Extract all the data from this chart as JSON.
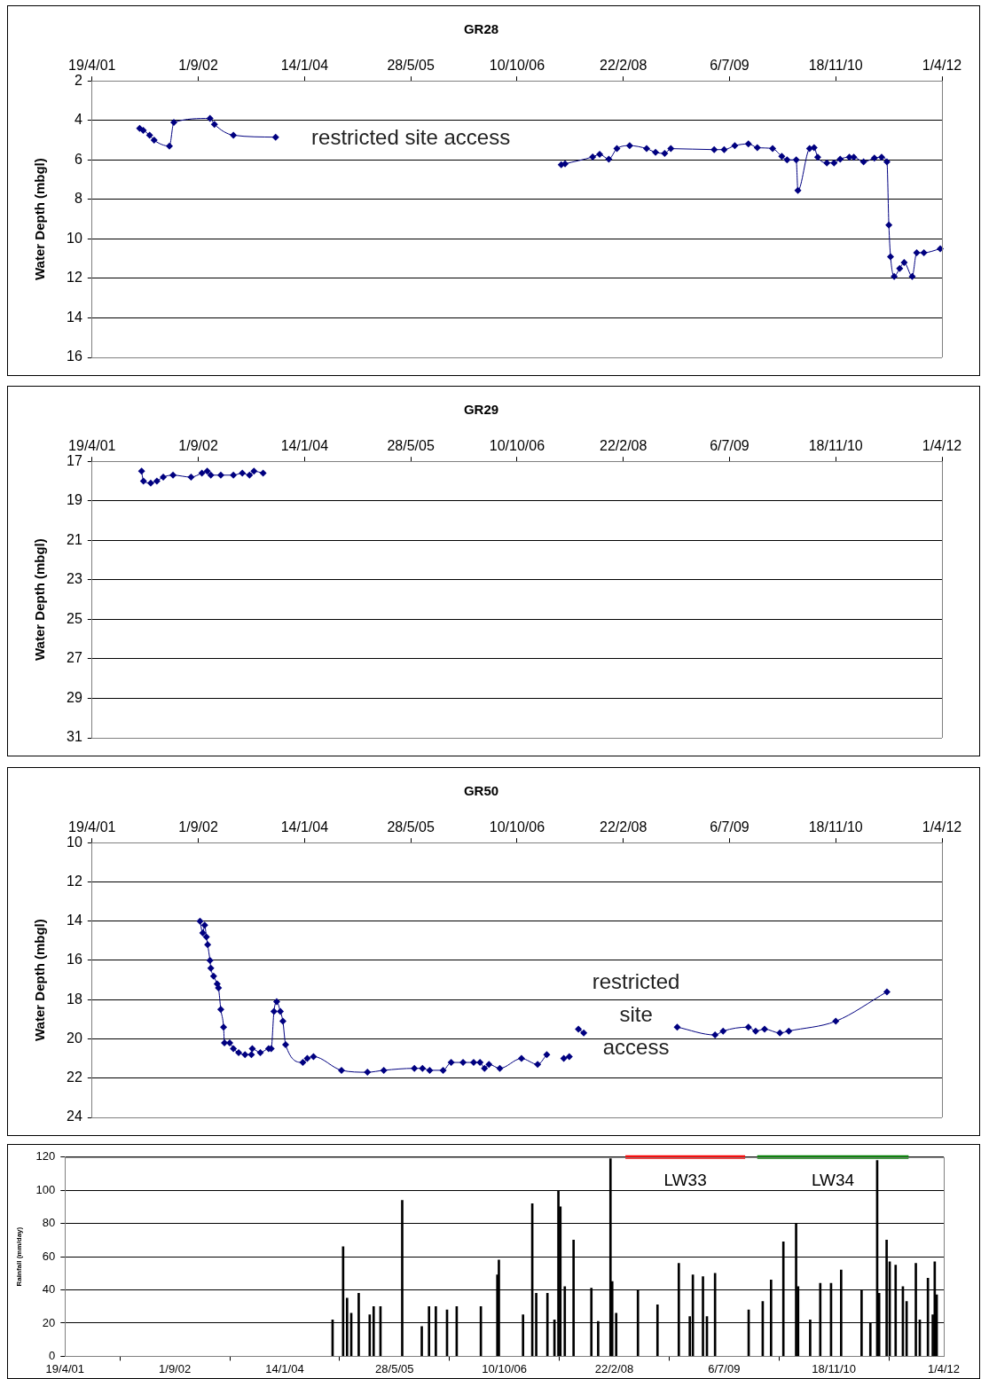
{
  "chart_data": [
    {
      "type": "line",
      "title": "GR28",
      "ylabel": "Water Depth (mbgl)",
      "color": "#000080",
      "marker": "diamond",
      "line_style": "solid",
      "grid": "y",
      "xlim": [
        "2001-04-19",
        "2012-04-01"
      ],
      "xticks": [
        {
          "value": "2001-04-19",
          "label": "19/4/01"
        },
        {
          "value": "2002-09-01",
          "label": "1/9/02"
        },
        {
          "value": "2004-01-14",
          "label": "14/1/04"
        },
        {
          "value": "2005-05-28",
          "label": "28/5/05"
        },
        {
          "value": "2006-10-10",
          "label": "10/10/06"
        },
        {
          "value": "2008-02-22",
          "label": "22/2/08"
        },
        {
          "value": "2009-07-06",
          "label": "6/7/09"
        },
        {
          "value": "2010-11-18",
          "label": "18/11/10"
        },
        {
          "value": "2012-04-01",
          "label": "1/4/12"
        }
      ],
      "ylim": [
        16,
        2
      ],
      "yticks": [
        2,
        4,
        6,
        8,
        10,
        12,
        14,
        16
      ],
      "annotations": [
        "restricted site access"
      ],
      "x": [
        "2001-11-29",
        "2001-12-16",
        "2002-01-15",
        "2002-02-05",
        "2002-04-18",
        "2002-05-09",
        "2002-10-26",
        "2002-11-16",
        "2003-02-13",
        "2003-08-31",
        "2005-06-01",
        "2007-05-06",
        "2007-05-24",
        "2007-10-01",
        "2007-11-03",
        "2007-12-16",
        "2008-01-23",
        "2008-03-23",
        "2008-06-11",
        "2008-07-23",
        "2008-09-04",
        "2008-10-03",
        "2009-04-25",
        "2009-06-11",
        "2009-07-31",
        "2009-10-03",
        "2009-11-14",
        "2010-01-25",
        "2010-03-09",
        "2010-04-03",
        "2010-05-16",
        "2010-05-24",
        "2010-07-18",
        "2010-08-08",
        "2010-08-25",
        "2010-10-07",
        "2010-11-10",
        "2010-12-09",
        "2011-01-21",
        "2011-02-11",
        "2011-03-29",
        "2011-05-19",
        "2011-06-22",
        "2011-07-17",
        "2011-07-26",
        "2011-08-03",
        "2011-08-20",
        "2011-09-15",
        "2011-10-06",
        "2011-11-13",
        "2011-12-04",
        "2012-01-07",
        "2012-03-24"
      ],
      "values": [
        4.4,
        4.5,
        4.75,
        5.0,
        5.3,
        4.1,
        3.9,
        4.2,
        4.75,
        4.85,
        null,
        6.25,
        6.2,
        5.85,
        5.72,
        5.96,
        5.43,
        5.28,
        5.43,
        5.62,
        5.67,
        5.43,
        5.48,
        5.48,
        5.28,
        5.19,
        5.38,
        5.43,
        5.82,
        6.0,
        6.0,
        7.55,
        5.43,
        5.38,
        5.86,
        6.15,
        6.15,
        5.96,
        5.86,
        5.86,
        6.1,
        5.91,
        5.86,
        6.1,
        9.3,
        10.9,
        11.9,
        11.5,
        11.2,
        11.9,
        10.7,
        10.7,
        10.5
      ]
    },
    {
      "type": "line",
      "title": "GR29",
      "ylabel": "Water Depth (mbgl)",
      "color": "#000080",
      "marker": "diamond",
      "line_style": "solid",
      "grid": "y",
      "xlim": [
        "2001-04-19",
        "2012-04-01"
      ],
      "xticks": [
        {
          "value": "2001-04-19",
          "label": "19/4/01"
        },
        {
          "value": "2002-09-01",
          "label": "1/9/02"
        },
        {
          "value": "2004-01-14",
          "label": "14/1/04"
        },
        {
          "value": "2005-05-28",
          "label": "28/5/05"
        },
        {
          "value": "2006-10-10",
          "label": "10/10/06"
        },
        {
          "value": "2008-02-22",
          "label": "22/2/08"
        },
        {
          "value": "2009-07-06",
          "label": "6/7/09"
        },
        {
          "value": "2010-11-18",
          "label": "18/11/10"
        },
        {
          "value": "2012-04-01",
          "label": "1/4/12"
        }
      ],
      "ylim": [
        31,
        17
      ],
      "yticks": [
        17,
        19,
        21,
        23,
        25,
        27,
        29,
        31
      ],
      "x": [
        "2001-12-08",
        "2001-12-17",
        "2002-01-20",
        "2002-02-18",
        "2002-03-20",
        "2002-05-05",
        "2002-07-29",
        "2002-09-18",
        "2002-10-13",
        "2002-10-30",
        "2002-12-16",
        "2003-02-13",
        "2003-03-27",
        "2003-04-30",
        "2003-05-21",
        "2003-07-03"
      ],
      "values": [
        17.5,
        18.0,
        18.1,
        18.0,
        17.8,
        17.7,
        17.8,
        17.6,
        17.5,
        17.7,
        17.7,
        17.7,
        17.6,
        17.7,
        17.5,
        17.6
      ]
    },
    {
      "type": "line",
      "title": "GR50",
      "ylabel": "Water Depth (mbgl)",
      "color": "#000080",
      "marker": "diamond",
      "line_style": "solid",
      "grid": "y",
      "xlim": [
        "2001-04-19",
        "2012-04-01"
      ],
      "xticks": [
        {
          "value": "2001-04-19",
          "label": "19/4/01"
        },
        {
          "value": "2002-09-01",
          "label": "1/9/02"
        },
        {
          "value": "2004-01-14",
          "label": "14/1/04"
        },
        {
          "value": "2005-05-28",
          "label": "28/5/05"
        },
        {
          "value": "2006-10-10",
          "label": "10/10/06"
        },
        {
          "value": "2008-02-22",
          "label": "22/2/08"
        },
        {
          "value": "2009-07-06",
          "label": "6/7/09"
        },
        {
          "value": "2010-11-18",
          "label": "18/11/10"
        },
        {
          "value": "2012-04-01",
          "label": "1/4/12"
        }
      ],
      "ylim": [
        24,
        10
      ],
      "yticks": [
        10,
        12,
        14,
        16,
        18,
        20,
        22,
        24
      ],
      "annotations": [
        "restricted\nsite\naccess"
      ],
      "x": [
        "2002-09-09",
        "2002-09-22",
        "2002-10-01",
        "2002-10-09",
        "2002-10-15",
        "2002-10-26",
        "2002-10-30",
        "2002-11-12",
        "2002-11-29",
        "2002-12-05",
        "2002-12-16",
        "2002-12-29",
        "2003-01-02",
        "2003-01-27",
        "2003-02-13",
        "2003-03-10",
        "2003-04-09",
        "2003-05-09",
        "2003-05-13",
        "2003-06-20",
        "2003-07-29",
        "2003-08-10",
        "2003-08-23",
        "2003-09-05",
        "2003-09-22",
        "2003-10-04",
        "2003-10-17",
        "2004-01-06",
        "2004-01-27",
        "2004-02-25",
        "2004-07-06",
        "2004-11-05",
        "2005-01-21",
        "2005-06-14",
        "2005-07-22",
        "2005-08-25",
        "2005-10-27",
        "2005-12-04",
        "2006-01-29",
        "2006-03-20",
        "2006-04-19",
        "2006-05-10",
        "2006-05-31",
        "2006-07-21",
        "2006-10-31",
        "2007-01-15",
        "2007-02-27",
        "2007-04-01",
        "2007-05-18",
        "2007-06-13",
        "2007-07-01",
        "2007-07-26",
        "2007-08-20",
        "2008-01-01",
        "2008-11-02",
        "2009-04-29",
        "2009-06-06",
        "2009-10-03",
        "2009-11-06",
        "2009-12-18",
        "2010-02-28",
        "2010-04-11",
        "2010-11-18",
        "2011-07-17"
      ],
      "values": [
        14.0,
        14.6,
        14.2,
        14.8,
        15.2,
        16.0,
        16.4,
        16.8,
        17.2,
        17.4,
        18.5,
        19.4,
        20.2,
        20.2,
        20.5,
        20.7,
        20.8,
        20.8,
        20.5,
        20.7,
        20.5,
        20.5,
        18.6,
        18.1,
        18.6,
        19.1,
        20.3,
        21.2,
        21.0,
        20.9,
        21.6,
        21.7,
        21.6,
        21.5,
        21.5,
        21.6,
        21.6,
        21.2,
        21.2,
        21.2,
        21.2,
        21.5,
        21.3,
        21.5,
        21.0,
        21.3,
        20.8,
        null,
        21.0,
        20.9,
        null,
        19.5,
        19.7,
        null,
        19.4,
        19.8,
        19.6,
        19.4,
        19.6,
        19.5,
        19.7,
        19.6,
        19.1,
        17.6
      ]
    },
    {
      "type": "bar",
      "ylabel": "Rainfall (mm/day)",
      "grid": "y",
      "xlim": [
        "2001-04-19",
        "2012-04-01"
      ],
      "xticks": [
        {
          "value": "2001-04-19",
          "label": "19/4/01"
        },
        {
          "value": "2002-09-01",
          "label": "1/9/02"
        },
        {
          "value": "2004-01-14",
          "label": "14/1/04"
        },
        {
          "value": "2005-05-28",
          "label": "28/5/05"
        },
        {
          "value": "2006-10-10",
          "label": "10/10/06"
        },
        {
          "value": "2008-02-22",
          "label": "22/2/08"
        },
        {
          "value": "2009-07-06",
          "label": "6/7/09"
        },
        {
          "value": "2010-11-18",
          "label": "18/11/10"
        },
        {
          "value": "2012-04-01",
          "label": "1/4/12"
        }
      ],
      "ylim": [
        0,
        120
      ],
      "yticks": [
        0,
        20,
        40,
        60,
        80,
        100,
        120
      ],
      "series": [
        {
          "color": "#000000",
          "x": [
            "2004-08-19",
            "2004-10-06",
            "2004-10-24",
            "2004-11-12",
            "2004-12-16",
            "2005-02-04",
            "2005-02-22",
            "2005-03-25",
            "2005-07-02",
            "2005-09-29",
            "2005-11-01",
            "2005-12-02",
            "2006-01-22",
            "2006-03-07",
            "2006-06-25",
            "2006-09-08",
            "2006-09-15",
            "2007-01-03",
            "2007-02-14",
            "2007-03-04",
            "2007-04-24",
            "2007-05-26",
            "2007-06-13",
            "2007-06-22",
            "2007-07-12",
            "2007-08-21",
            "2007-11-10",
            "2007-12-11",
            "2008-02-05",
            "2008-02-13",
            "2008-03-02",
            "2008-06-09",
            "2008-09-06",
            "2008-12-12",
            "2009-01-31",
            "2009-02-14",
            "2009-04-01",
            "2009-04-19",
            "2009-05-26",
            "2009-10-26",
            "2009-12-29",
            "2010-02-05",
            "2010-04-02",
            "2010-05-30",
            "2010-06-08",
            "2010-08-02",
            "2010-09-17",
            "2010-11-05",
            "2010-12-21",
            "2011-03-24",
            "2011-05-03",
            "2011-06-03",
            "2011-06-12",
            "2011-07-16",
            "2011-07-30",
            "2011-08-26",
            "2011-09-28",
            "2011-10-15",
            "2011-11-26",
            "2011-12-14",
            "2012-01-20",
            "2012-02-11",
            "2012-02-20",
            "2012-02-29"
          ],
          "values": [
            22,
            66,
            35,
            26,
            38,
            25,
            30,
            30,
            94,
            18,
            30,
            30,
            28,
            30,
            30,
            49,
            58,
            25,
            92,
            38,
            38,
            22,
            100,
            90,
            42,
            70,
            41,
            21,
            119,
            45,
            26,
            40,
            31,
            56,
            24,
            49,
            48,
            24,
            50,
            28,
            33,
            46,
            69,
            80,
            42,
            22,
            44,
            44,
            52,
            40,
            20,
            118,
            38,
            70,
            57,
            55,
            42,
            33,
            56,
            22,
            47,
            25,
            57,
            37
          ]
        },
        {
          "type": "line",
          "name": "LW33",
          "color": "#ff0000",
          "x": [
            "2008-04-13",
            "2009-10-10"
          ],
          "values": [
            120,
            120
          ]
        },
        {
          "type": "line",
          "name": "LW34",
          "color": "#008000",
          "x": [
            "2009-12-04",
            "2011-10-24"
          ],
          "values": [
            120,
            120
          ]
        }
      ]
    }
  ]
}
